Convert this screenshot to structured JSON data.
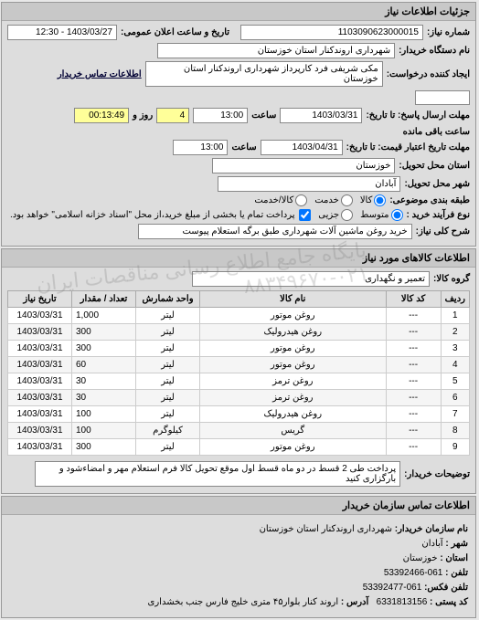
{
  "watermark": "پایگاه جامع اطلاع رسانی مناقصات ایران ۰۲۱-۸۸۳۴۹۶۷۰",
  "panel1": {
    "title": "جزئیات اطلاعات نیاز",
    "req_no_label": "شماره نیاز:",
    "req_no": "1103090623000015",
    "announce_label": "تاریخ و ساعت اعلان عمومی:",
    "announce_value": "1403/03/27 - 12:30",
    "buyer_org_label": "نام دستگاه خریدار:",
    "buyer_org": "شهرداری اروندکنار استان خوزستان",
    "requester_label": "ایجاد کننده درخواست:",
    "requester": "مکی شریفی فرد کارپرداز شهرداری اروندکنار استان خوزستان",
    "buyer_contact_label": "اطلاعات تماس خریدار",
    "buyer_contact": "",
    "deadline_label": "مهلت ارسال پاسخ: تا تاریخ:",
    "deadline_date": "1403/03/31",
    "time_label": "ساعت",
    "deadline_time": "13:00",
    "days_remaining": "4",
    "remaining_label": "روز و",
    "remaining_time": "00:13:49",
    "remaining_suffix": "ساعت باقی مانده",
    "validity_label": "مهلت تاریخ اعتبار قیمت: تا تاریخ:",
    "validity_date": "1403/04/31",
    "validity_time": "13:00",
    "province_label": "استان محل تحویل:",
    "province": "خوزستان",
    "city_label": "شهر محل تحویل:",
    "city": "آبادان",
    "classify_label": "طبقه بندی موضوعی:",
    "classify_opts": [
      "کالا",
      "خدمت",
      "کالا/خدمت"
    ],
    "classify_selected": "کالا",
    "purchase_type_label": "نوع فرآیند خرید :",
    "purchase_opts": [
      "متوسط",
      "جزیی"
    ],
    "purchase_selected": "متوسط",
    "payment_note": "پرداخت تمام یا بخشی از مبلغ خرید،از محل \"اسناد خزانه اسلامی\" خواهد بود.",
    "payment_check": true,
    "subject_label": "شرح کلی نیاز:",
    "subject": "خرید روغن ماشین آلات شهرداری طبق برگه استعلام پیوست"
  },
  "panel2": {
    "title": "اطلاعات کالاهای مورد نیاز",
    "group_label": "گروه کالا:",
    "group": "تعمیر و نگهداری",
    "columns": [
      "ردیف",
      "کد کالا",
      "نام کالا",
      "واحد شمارش",
      "تعداد / مقدار",
      "تاریخ نیاز"
    ],
    "rows": [
      [
        "1",
        "---",
        "روغن موتور",
        "لیتر",
        "1,000",
        "1403/03/31"
      ],
      [
        "2",
        "---",
        "روغن هیدرولیک",
        "لیتر",
        "300",
        "1403/03/31"
      ],
      [
        "3",
        "---",
        "روغن موتور",
        "لیتر",
        "300",
        "1403/03/31"
      ],
      [
        "4",
        "---",
        "روغن موتور",
        "لیتر",
        "60",
        "1403/03/31"
      ],
      [
        "5",
        "---",
        "روغن ترمز",
        "لیتر",
        "30",
        "1403/03/31"
      ],
      [
        "6",
        "---",
        "روغن ترمز",
        "لیتر",
        "30",
        "1403/03/31"
      ],
      [
        "7",
        "---",
        "روغن هیدرولیک",
        "لیتر",
        "100",
        "1403/03/31"
      ],
      [
        "8",
        "---",
        "گریس",
        "کیلوگرم",
        "100",
        "1403/03/31"
      ],
      [
        "9",
        "---",
        "روغن موتور",
        "لیتر",
        "300",
        "1403/03/31"
      ]
    ],
    "notes_label": "توضیحات خریدار:",
    "notes": "پرداخت طی 2 قسط در دو ماه قسط اول موقع تحویل کالا فرم استعلام مهر و امضاءشود و بارگزاری کنید"
  },
  "panel3": {
    "title": "اطلاعات تماس سازمان خریدار",
    "org_label": "نام سازمان خریدار:",
    "org": "شهرداری اروندکنار استان خوزستان",
    "city_label": "شهر :",
    "city": "آبادان",
    "province_label": "استان :",
    "province": "خوزستان",
    "phone_label": "تلفن :",
    "phone": "061-53392466",
    "fax_label": "تلفن فکس:",
    "fax": "061-53392477",
    "postal_label": "کد پستی :",
    "postal": "6331813156",
    "address_label": "آدرس :",
    "address": "اروند کنار بلوار۴۵ متری خلیج فارس جنب بخشداری"
  }
}
